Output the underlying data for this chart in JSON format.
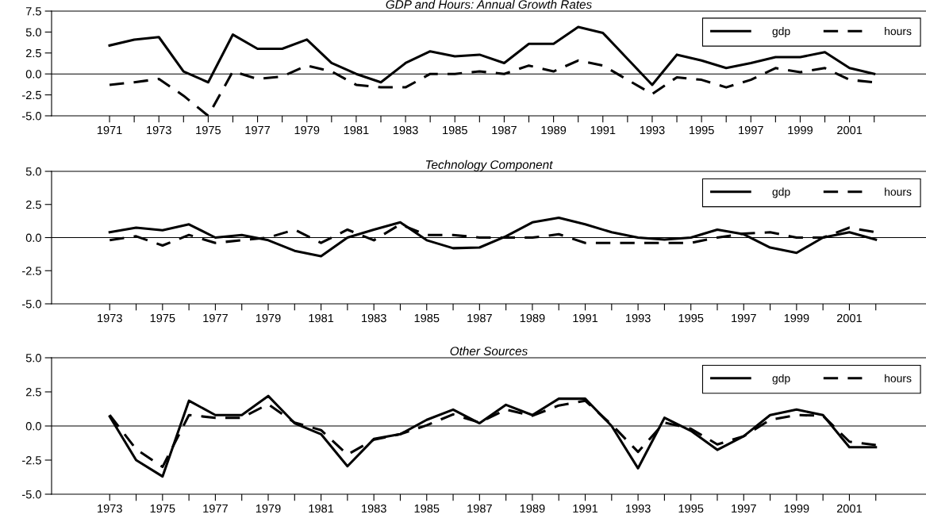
{
  "chart_data": [
    {
      "type": "line",
      "title": "GDP and Hours: Annual Growth Rates",
      "x": [
        1971,
        1972,
        1973,
        1974,
        1975,
        1976,
        1977,
        1978,
        1979,
        1980,
        1981,
        1982,
        1983,
        1984,
        1985,
        1986,
        1987,
        1988,
        1989,
        1990,
        1991,
        1992,
        1993,
        1994,
        1995,
        1996,
        1997,
        1998,
        1999,
        2000,
        2001,
        2002
      ],
      "series": [
        {
          "name": "gdp",
          "color": "#000000",
          "line_style": "solid",
          "values": [
            3.4,
            4.1,
            4.4,
            0.3,
            -1.0,
            4.7,
            3.0,
            3.0,
            4.1,
            1.3,
            0.0,
            -1.0,
            1.3,
            2.7,
            2.1,
            2.3,
            1.3,
            3.6,
            3.6,
            5.6,
            4.9,
            1.8,
            -1.3,
            2.3,
            1.6,
            0.7,
            1.3,
            2.0,
            2.0,
            2.6,
            0.7,
            0.0
          ]
        },
        {
          "name": "hours",
          "color": "#000000",
          "line_style": "dashed",
          "values": [
            -1.3,
            -1.0,
            -0.6,
            -2.6,
            -5.0,
            0.3,
            -0.6,
            -0.3,
            1.0,
            0.3,
            -1.3,
            -1.6,
            -1.6,
            0.0,
            0.0,
            0.3,
            0.0,
            1.0,
            0.3,
            1.6,
            1.0,
            -0.7,
            -2.4,
            -0.4,
            -0.7,
            -1.6,
            -0.7,
            0.7,
            0.2,
            0.7,
            -0.7,
            -1.0
          ]
        }
      ],
      "xlim": [
        1968.65,
        2004.1
      ],
      "xticks": [
        1971,
        {
          "value": 1972,
          "label": null
        },
        1973,
        {
          "value": 1974,
          "label": null
        },
        1975,
        {
          "value": 1976,
          "label": null
        },
        1977,
        {
          "value": 1978,
          "label": null
        },
        1979,
        {
          "value": 1980,
          "label": null
        },
        1981,
        {
          "value": 1982,
          "label": null
        },
        1983,
        {
          "value": 1984,
          "label": null
        },
        1985,
        {
          "value": 1986,
          "label": null
        },
        1987,
        {
          "value": 1988,
          "label": null
        },
        1989,
        {
          "value": 1990,
          "label": null
        },
        1991,
        {
          "value": 1992,
          "label": null
        },
        1993,
        {
          "value": 1994,
          "label": null
        },
        1995,
        {
          "value": 1996,
          "label": null
        },
        1997,
        {
          "value": 1998,
          "label": null
        },
        1999,
        {
          "value": 2000,
          "label": null
        },
        2001,
        {
          "value": 2002,
          "label": null
        }
      ],
      "ylim": [
        -5,
        7.5
      ],
      "yticks": [
        {
          "value": -5,
          "label": "-5.0"
        },
        {
          "value": -2.5,
          "label": "-2.5"
        },
        {
          "value": 0,
          "label": "0.0"
        },
        {
          "value": 2.5,
          "label": "2.5"
        },
        {
          "value": 5,
          "label": "5.0"
        },
        {
          "value": 7.5,
          "label": "7.5"
        }
      ],
      "ref_lines": [
        {
          "axis": "y",
          "value": 0,
          "color": "#000000"
        }
      ],
      "legend": "top right",
      "grid": false
    },
    {
      "type": "line",
      "title": "Technology Component",
      "x": [
        1973,
        1974,
        1975,
        1976,
        1977,
        1978,
        1979,
        1980,
        1981,
        1982,
        1983,
        1984,
        1985,
        1986,
        1987,
        1988,
        1989,
        1990,
        1991,
        1992,
        1993,
        1994,
        1995,
        1996,
        1997,
        1998,
        1999,
        2000,
        2001,
        2002
      ],
      "series": [
        {
          "name": "gdp",
          "color": "#000000",
          "line_style": "solid",
          "values": [
            0.4,
            0.75,
            0.55,
            1.0,
            0.0,
            0.2,
            -0.2,
            -1.0,
            -1.4,
            0.0,
            0.6,
            1.15,
            -0.2,
            -0.8,
            -0.75,
            0.1,
            1.15,
            1.5,
            1.0,
            0.4,
            0.0,
            -0.15,
            0.0,
            0.6,
            0.25,
            -0.75,
            -1.15,
            0.0,
            0.4,
            -0.15
          ]
        },
        {
          "name": "hours",
          "color": "#000000",
          "line_style": "dashed",
          "values": [
            -0.2,
            0.1,
            -0.6,
            0.2,
            -0.4,
            -0.2,
            0.0,
            0.6,
            -0.4,
            0.6,
            -0.2,
            1.0,
            0.2,
            0.2,
            0.0,
            0.0,
            0.0,
            0.25,
            -0.4,
            -0.4,
            -0.4,
            -0.4,
            -0.4,
            0.0,
            0.3,
            0.4,
            0.0,
            0.0,
            0.75,
            0.4
          ]
        }
      ],
      "xlim": [
        1970.8,
        2003.9
      ],
      "xticks": [
        1973,
        {
          "value": 1974,
          "label": null
        },
        1975,
        {
          "value": 1976,
          "label": null
        },
        1977,
        {
          "value": 1978,
          "label": null
        },
        1979,
        {
          "value": 1980,
          "label": null
        },
        1981,
        {
          "value": 1982,
          "label": null
        },
        1983,
        {
          "value": 1984,
          "label": null
        },
        1985,
        {
          "value": 1986,
          "label": null
        },
        1987,
        {
          "value": 1988,
          "label": null
        },
        1989,
        {
          "value": 1990,
          "label": null
        },
        1991,
        {
          "value": 1992,
          "label": null
        },
        1993,
        {
          "value": 1994,
          "label": null
        },
        1995,
        {
          "value": 1996,
          "label": null
        },
        1997,
        {
          "value": 1998,
          "label": null
        },
        1999,
        {
          "value": 2000,
          "label": null
        },
        2001,
        {
          "value": 2002,
          "label": null
        }
      ],
      "ylim": [
        -5,
        5
      ],
      "yticks": [
        {
          "value": -5,
          "label": "-5.0"
        },
        {
          "value": -2.5,
          "label": "-2.5"
        },
        {
          "value": 0,
          "label": "0.0"
        },
        {
          "value": 2.5,
          "label": "2.5"
        },
        {
          "value": 5,
          "label": "5.0"
        }
      ],
      "ref_lines": [
        {
          "axis": "y",
          "value": 0,
          "color": "#000000"
        }
      ],
      "legend": "top right",
      "grid": false
    },
    {
      "type": "line",
      "title": "Other Sources",
      "x": [
        1973,
        1974,
        1975,
        1976,
        1977,
        1978,
        1979,
        1980,
        1981,
        1982,
        1983,
        1984,
        1985,
        1986,
        1987,
        1988,
        1989,
        1990,
        1991,
        1992,
        1993,
        1994,
        1995,
        1996,
        1997,
        1998,
        1999,
        2000,
        2001,
        2002
      ],
      "series": [
        {
          "name": "gdp",
          "color": "#000000",
          "line_style": "solid",
          "values": [
            0.7,
            -2.5,
            -3.7,
            1.85,
            0.8,
            0.8,
            2.2,
            0.2,
            -0.6,
            -2.95,
            -0.95,
            -0.6,
            0.45,
            1.2,
            0.2,
            1.55,
            0.8,
            2.0,
            2.0,
            0.0,
            -3.1,
            0.6,
            -0.35,
            -1.75,
            -0.75,
            0.8,
            1.2,
            0.8,
            -1.55,
            -1.55
          ]
        },
        {
          "name": "hours",
          "color": "#000000",
          "line_style": "dashed",
          "values": [
            0.8,
            -1.7,
            -3.0,
            0.8,
            0.6,
            0.6,
            1.6,
            0.25,
            -0.3,
            -2.1,
            -1.0,
            -0.6,
            0.05,
            0.85,
            0.25,
            1.2,
            0.75,
            1.5,
            1.85,
            0.1,
            -1.9,
            0.25,
            -0.2,
            -1.35,
            -0.75,
            0.45,
            0.8,
            0.75,
            -1.15,
            -1.4
          ]
        }
      ],
      "xlim": [
        1970.8,
        2003.9
      ],
      "xticks": [
        1973,
        {
          "value": 1974,
          "label": null
        },
        1975,
        {
          "value": 1976,
          "label": null
        },
        1977,
        {
          "value": 1978,
          "label": null
        },
        1979,
        {
          "value": 1980,
          "label": null
        },
        1981,
        {
          "value": 1982,
          "label": null
        },
        1983,
        {
          "value": 1984,
          "label": null
        },
        1985,
        {
          "value": 1986,
          "label": null
        },
        1987,
        {
          "value": 1988,
          "label": null
        },
        1989,
        {
          "value": 1990,
          "label": null
        },
        1991,
        {
          "value": 1992,
          "label": null
        },
        1993,
        {
          "value": 1994,
          "label": null
        },
        1995,
        {
          "value": 1996,
          "label": null
        },
        1997,
        {
          "value": 1998,
          "label": null
        },
        1999,
        {
          "value": 2000,
          "label": null
        },
        2001,
        {
          "value": 2002,
          "label": null
        }
      ],
      "ylim": [
        -5,
        5
      ],
      "yticks": [
        {
          "value": -5,
          "label": "-5.0"
        },
        {
          "value": -2.5,
          "label": "-2.5"
        },
        {
          "value": 0,
          "label": "0.0"
        },
        {
          "value": 2.5,
          "label": "2.5"
        },
        {
          "value": 5,
          "label": "5.0"
        }
      ],
      "ref_lines": [
        {
          "axis": "y",
          "value": 0,
          "color": "#000000"
        }
      ],
      "legend": "top right",
      "grid": false
    }
  ]
}
